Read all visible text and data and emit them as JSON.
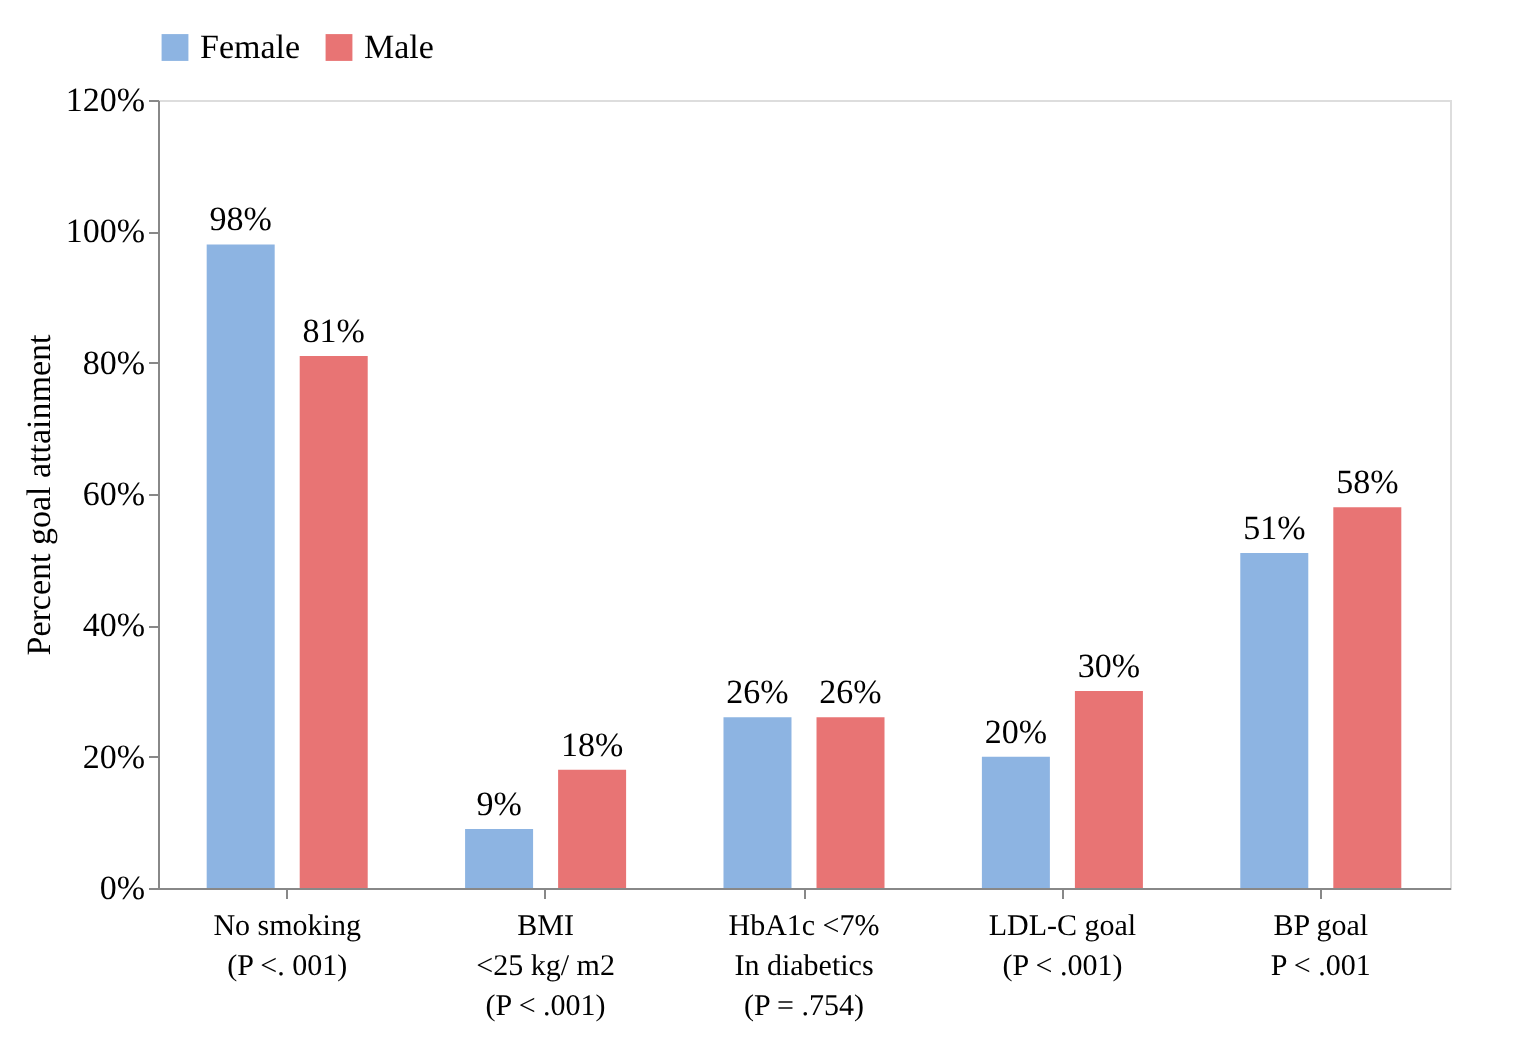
{
  "chart_data": {
    "type": "bar",
    "ylabel": "Percent goal attainment",
    "categories": [
      "No smoking\n(P <. 001)",
      "BMI\n<25 kg/ m2\n(P < .001)",
      "HbA1c <7%\nIn diabetics\n(P = .754)",
      "LDL-C goal\n(P < .001)",
      "BP goal\nP < .001"
    ],
    "series": [
      {
        "name": "Female",
        "color": "#8db4e2",
        "values": [
          98,
          9,
          26,
          20,
          51
        ],
        "value_labels": [
          "98%",
          "9%",
          "26%",
          "20%",
          "51%"
        ]
      },
      {
        "name": "Male",
        "color": "#e87474",
        "values": [
          81,
          18,
          26,
          30,
          58
        ],
        "value_labels": [
          "81%",
          "18%",
          "26%",
          "30%",
          "58%"
        ]
      }
    ],
    "ylim": [
      0,
      120
    ],
    "yticks": [
      {
        "value": 0,
        "label": "0%"
      },
      {
        "value": 20,
        "label": "20%"
      },
      {
        "value": 40,
        "label": "40%"
      },
      {
        "value": 60,
        "label": "60%"
      },
      {
        "value": 80,
        "label": "80%"
      },
      {
        "value": 100,
        "label": "100%"
      },
      {
        "value": 120,
        "label": "120%"
      }
    ],
    "grid": false,
    "legend": "top"
  }
}
